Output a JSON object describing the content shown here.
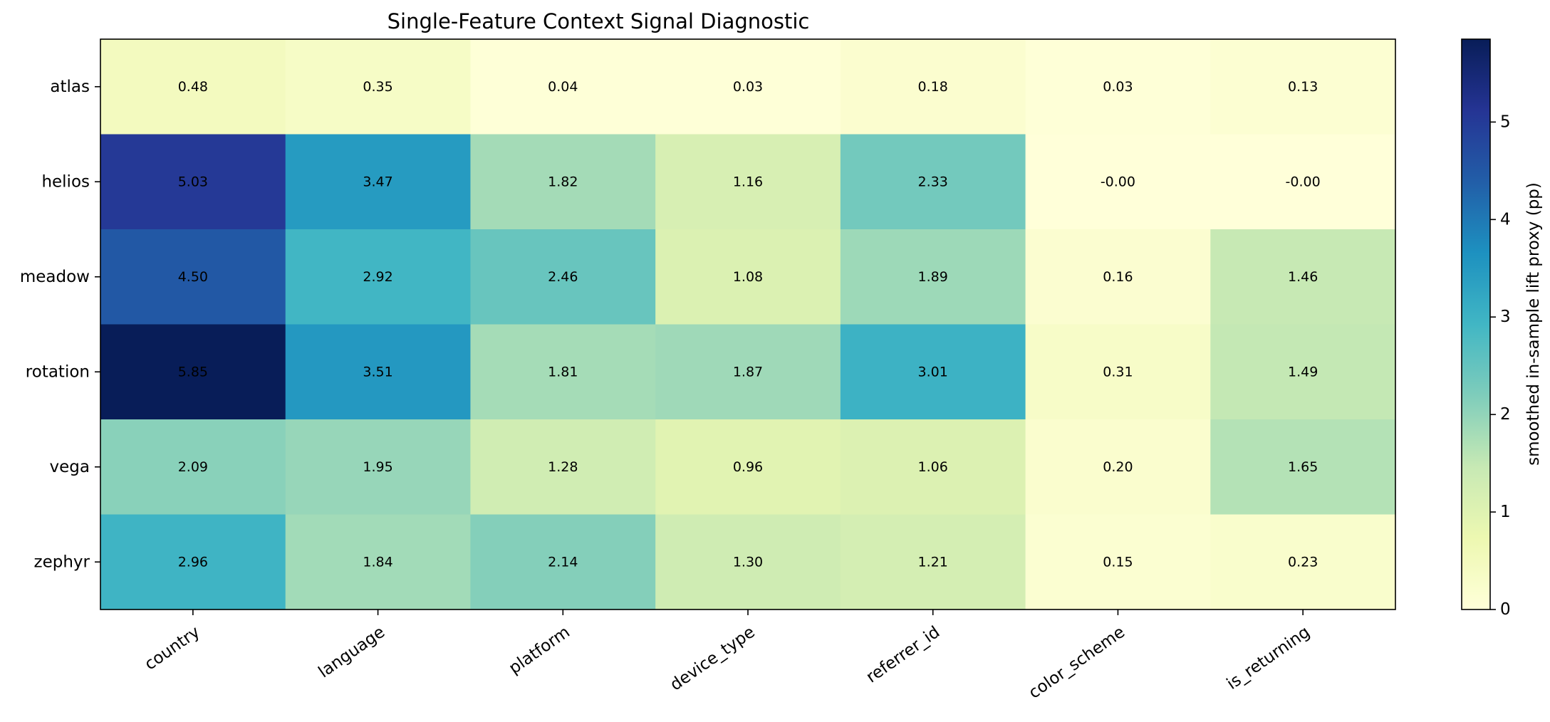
{
  "chart_data": {
    "type": "heatmap",
    "title": "Single-Feature Context Signal Diagnostic",
    "xlabel": "",
    "ylabel": "",
    "columns": [
      "country",
      "language",
      "platform",
      "device_type",
      "referrer_id",
      "color_scheme",
      "is_returning"
    ],
    "rows": [
      "atlas",
      "helios",
      "meadow",
      "rotation",
      "vega",
      "zephyr"
    ],
    "values": [
      [
        0.48,
        0.35,
        0.04,
        0.03,
        0.18,
        0.03,
        0.13
      ],
      [
        5.03,
        3.47,
        1.82,
        1.16,
        2.33,
        -0.001,
        -0.001
      ],
      [
        4.5,
        2.92,
        2.46,
        1.08,
        1.89,
        0.16,
        1.46
      ],
      [
        5.85,
        3.51,
        1.81,
        1.87,
        3.01,
        0.31,
        1.49
      ],
      [
        2.09,
        1.95,
        1.28,
        0.96,
        1.06,
        0.2,
        1.65
      ],
      [
        2.96,
        1.84,
        2.14,
        1.3,
        1.21,
        0.15,
        0.23
      ]
    ],
    "value_labels": [
      [
        "0.48",
        "0.35",
        "0.04",
        "0.03",
        "0.18",
        "0.03",
        "0.13"
      ],
      [
        "5.03",
        "3.47",
        "1.82",
        "1.16",
        "2.33",
        "-0.00",
        "-0.00"
      ],
      [
        "4.50",
        "2.92",
        "2.46",
        "1.08",
        "1.89",
        "0.16",
        "1.46"
      ],
      [
        "5.85",
        "3.51",
        "1.81",
        "1.87",
        "3.01",
        "0.31",
        "1.49"
      ],
      [
        "2.09",
        "1.95",
        "1.28",
        "0.96",
        "1.06",
        "0.20",
        "1.65"
      ],
      [
        "2.96",
        "1.84",
        "2.14",
        "1.30",
        "1.21",
        "0.15",
        "0.23"
      ]
    ],
    "colormap": "YlGnBu",
    "colorbar": {
      "label": "smoothed in-sample lift proxy (pp)",
      "range": [
        0,
        5.85
      ],
      "ticks": [
        0,
        1,
        2,
        3,
        4,
        5
      ],
      "tick_labels": [
        "0",
        "1",
        "2",
        "3",
        "4",
        "5"
      ]
    }
  }
}
